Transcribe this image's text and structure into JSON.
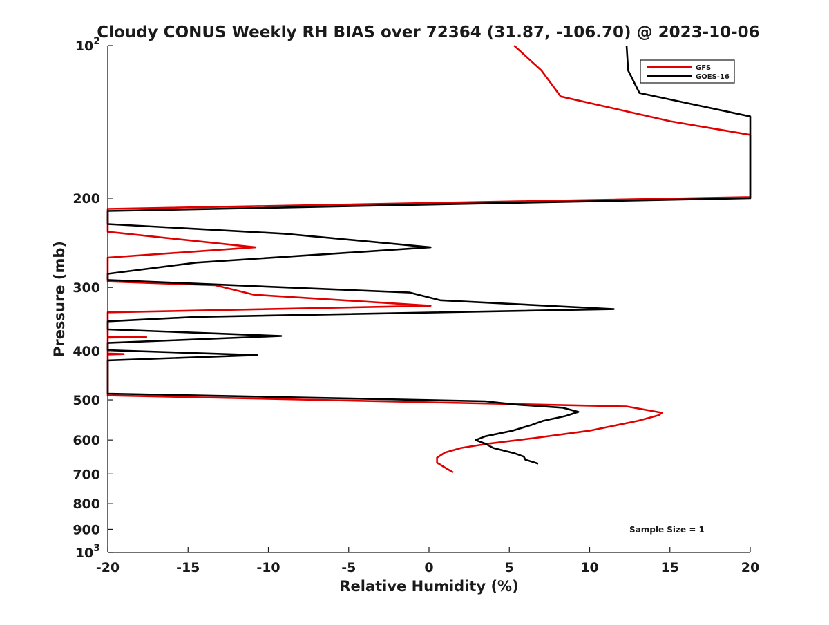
{
  "chart_data": {
    "type": "line",
    "title": "Cloudy CONUS Weekly RH BIAS over 72364 (31.87, -106.70) @ 2023-10-06",
    "xlabel": "Relative Humidity (%)",
    "ylabel": "Pressure (mb)",
    "xlim": [
      -20,
      20
    ],
    "ylim": [
      100,
      1000
    ],
    "y_scale": "log",
    "y_reversed": true,
    "x_ticks": [
      -20,
      -15,
      -10,
      -5,
      0,
      5,
      10,
      15,
      20
    ],
    "x_tick_labels": [
      "-20",
      "-15",
      "-10",
      "-5",
      "0",
      "5",
      "10",
      "15",
      "20"
    ],
    "y_ticks": [
      100,
      200,
      300,
      400,
      500,
      600,
      700,
      800,
      900,
      1000
    ],
    "y_tick_labels": [
      {
        "base": "10",
        "exp": "2"
      },
      {
        "base": "200",
        "exp": ""
      },
      {
        "base": "300",
        "exp": ""
      },
      {
        "base": "400",
        "exp": ""
      },
      {
        "base": "500",
        "exp": ""
      },
      {
        "base": "600",
        "exp": ""
      },
      {
        "base": "700",
        "exp": ""
      },
      {
        "base": "800",
        "exp": ""
      },
      {
        "base": "900",
        "exp": ""
      },
      {
        "base": "10",
        "exp": "3"
      }
    ],
    "grid": false,
    "legend_position": "top-right",
    "annotation": "Sample Size = 1",
    "series": [
      {
        "name": "GFS",
        "color": "#e00000",
        "points": [
          [
            5.3,
            100
          ],
          [
            7,
            112
          ],
          [
            8.2,
            126
          ],
          [
            15,
            141
          ],
          [
            20,
            150
          ],
          [
            20,
            199
          ],
          [
            -20,
            210
          ],
          [
            -20,
            233
          ],
          [
            -10.8,
            250
          ],
          [
            -20,
            262
          ],
          [
            -20,
            292
          ],
          [
            -13.3,
            297
          ],
          [
            -10.9,
            310
          ],
          [
            0.1,
            326
          ],
          [
            -20,
            336
          ],
          [
            -20,
            375
          ],
          [
            -17.6,
            376
          ],
          [
            -20,
            377
          ],
          [
            -20,
            405
          ],
          [
            -19,
            406
          ],
          [
            -20,
            407
          ],
          [
            -20,
            490
          ],
          [
            12.3,
            515
          ],
          [
            14.5,
            530
          ],
          [
            14.3,
            536
          ],
          [
            13,
            550
          ],
          [
            10,
            575
          ],
          [
            6.5,
            595
          ],
          [
            3.7,
            610
          ],
          [
            2,
            622
          ],
          [
            1,
            635
          ],
          [
            0.5,
            650
          ],
          [
            0.5,
            665
          ],
          [
            1,
            680
          ],
          [
            1.5,
            695
          ]
        ]
      },
      {
        "name": "GOES-16",
        "color": "#000000",
        "points": [
          [
            12.3,
            100
          ],
          [
            12.4,
            112
          ],
          [
            13.1,
            124
          ],
          [
            20,
            138
          ],
          [
            20,
            200
          ],
          [
            -20,
            212
          ],
          [
            -20,
            225
          ],
          [
            -9,
            235
          ],
          [
            0.1,
            250
          ],
          [
            -14.5,
            268
          ],
          [
            -20,
            282
          ],
          [
            -20,
            290
          ],
          [
            -1.2,
            307
          ],
          [
            0.7,
            318
          ],
          [
            11.5,
            331
          ],
          [
            -14.5,
            343
          ],
          [
            -20,
            350
          ],
          [
            -20,
            363
          ],
          [
            -9.2,
            374
          ],
          [
            -20,
            386
          ],
          [
            -20,
            399
          ],
          [
            -10.7,
            408
          ],
          [
            -20,
            418
          ],
          [
            -20,
            486
          ],
          [
            3.5,
            503
          ],
          [
            5.5,
            511
          ],
          [
            8.3,
            518
          ],
          [
            9.3,
            528
          ],
          [
            8.5,
            538
          ],
          [
            7.1,
            550
          ],
          [
            6.4,
            560
          ],
          [
            5.2,
            575
          ],
          [
            3.5,
            590
          ],
          [
            2.9,
            600
          ],
          [
            3.5,
            610
          ],
          [
            4,
            622
          ],
          [
            5.3,
            637
          ],
          [
            5.9,
            647
          ],
          [
            6,
            656
          ],
          [
            6.8,
            668
          ]
        ]
      }
    ]
  }
}
